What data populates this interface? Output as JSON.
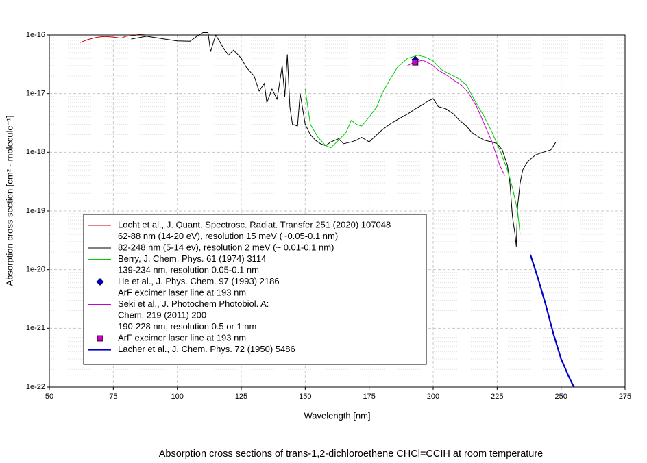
{
  "chart_data": {
    "type": "line",
    "title": "Absorption cross sections of trans-1,2-dichloroethene CHCl=CCIH at room temperature",
    "x_label": "Wavelength [nm]",
    "y_label": "Absorption cross section [cm² · molecule⁻¹]",
    "xlim": [
      50,
      275
    ],
    "xticks": [
      50,
      75,
      100,
      125,
      150,
      175,
      200,
      225,
      250,
      275
    ],
    "ylim": [
      1e-22,
      1e-16
    ],
    "yticks": [
      1e-22,
      1e-21,
      1e-20,
      1e-19,
      1e-18,
      1e-17,
      1e-16
    ],
    "log_y": true,
    "grid": true,
    "legend": "lower left",
    "series": [
      {
        "name": [
          "Locht et al., J. Quant. Spectrosc. Radiat. Transfer 251 (2020) 107048",
          "62-88 nm (14-20 eV), resolution 15 meV (~0.05-0.1 nm)"
        ],
        "color": "#cc0000",
        "style": "line",
        "x": [
          62,
          65,
          68,
          70,
          72,
          75,
          78,
          80,
          83,
          85,
          88
        ],
        "values": [
          7.4e-17,
          8.3e-17,
          9e-17,
          9.3e-17,
          9.4e-17,
          9.2e-17,
          8.8e-17,
          9.5e-17,
          9.8e-17,
          1.02e-16,
          1e-16
        ]
      },
      {
        "name": [
          "82-248 nm (5-14 ev),  resolution  2 meV (~ 0.01-0.1 nm)"
        ],
        "color": "#000000",
        "style": "line",
        "x": [
          82,
          88,
          95,
          100,
          105,
          108,
          110,
          112,
          113,
          115,
          118,
          120,
          122,
          125,
          127,
          130,
          132,
          134,
          135,
          137,
          139,
          141,
          142,
          143,
          144,
          145,
          147,
          148,
          150,
          152,
          154,
          156,
          158,
          160,
          163,
          165,
          168,
          170,
          172,
          175,
          178,
          180,
          183,
          186,
          190,
          193,
          196,
          198,
          200,
          202,
          205,
          208,
          210,
          213,
          215,
          218,
          220,
          223,
          225,
          227,
          229,
          230,
          231,
          232,
          232.5,
          233,
          234,
          235,
          237,
          240,
          243,
          246,
          248
        ],
        "values": [
          8.5e-17,
          9.5e-17,
          8.5e-17,
          7.9e-17,
          7.8e-17,
          9.7e-17,
          1.1e-16,
          1.1e-16,
          5.2e-17,
          1e-16,
          6e-17,
          4.5e-17,
          5.5e-17,
          4e-17,
          2.8e-17,
          2e-17,
          1.1e-17,
          1.5e-17,
          7e-18,
          1.2e-17,
          8e-18,
          3e-17,
          9e-18,
          4.6e-17,
          6e-18,
          3e-18,
          2.8e-18,
          1e-17,
          3e-18,
          2e-18,
          1.6e-18,
          1.4e-18,
          1.3e-18,
          1.5e-18,
          1.7e-18,
          1.4e-18,
          1.5e-18,
          1.6e-18,
          1.8e-18,
          1.5e-18,
          2e-18,
          2.4e-18,
          3e-18,
          3.6e-18,
          4.5e-18,
          5.5e-18,
          6.5e-18,
          7.5e-18,
          8.2e-18,
          6e-18,
          5.5e-18,
          4.5e-18,
          3.6e-18,
          2.8e-18,
          2.2e-18,
          1.8e-18,
          1.6e-18,
          1.5e-18,
          1.4e-18,
          1.1e-18,
          6e-19,
          3e-19,
          8e-20,
          4e-20,
          2.5e-20,
          1.2e-19,
          3e-19,
          5e-19,
          7e-19,
          9e-19,
          1e-18,
          1.1e-18,
          1.5e-18
        ]
      },
      {
        "name": [
          "Berry, J. Chem. Phys. 61 (1974) 3114",
          "139-234 nm, resolution 0.05-0.1 nm"
        ],
        "color": "#00cc00",
        "style": "line",
        "x": [
          150,
          152,
          155,
          158,
          160,
          163,
          166,
          168,
          170,
          172,
          175,
          178,
          180,
          183,
          186,
          190,
          194,
          197,
          200,
          203,
          206,
          210,
          213,
          216,
          220,
          223,
          226,
          229,
          231,
          233,
          234
        ],
        "values": [
          1.2e-17,
          3e-18,
          1.8e-18,
          1.3e-18,
          1.2e-18,
          1.6e-18,
          2.2e-18,
          3.5e-18,
          3e-18,
          2.8e-18,
          4e-18,
          6e-18,
          1e-17,
          1.7e-17,
          2.8e-17,
          4e-17,
          4.5e-17,
          4.2e-17,
          3.6e-17,
          2.6e-17,
          2.2e-17,
          1.8e-17,
          1.4e-17,
          8e-18,
          4e-18,
          2.2e-18,
          1.1e-18,
          5e-19,
          2.5e-19,
          1e-19,
          4e-20
        ]
      },
      {
        "name": [
          "He et al., J. Phys. Chem. 97 (1993) 2186",
          "ArF excimer laser line at 193 nm"
        ],
        "color": "#0000cc",
        "style": "diamond",
        "x": [
          193
        ],
        "values": [
          3.8e-17
        ]
      },
      {
        "name": [
          "Seki et al., J. Photochem Photobiol. A:",
          "Chem. 219 (2011) 200",
          "190-228 nm, resolution 0.5 or 1 nm"
        ],
        "color": "#cc00cc",
        "style": "line",
        "x": [
          190,
          193,
          196,
          199,
          202,
          205,
          208,
          211,
          214,
          217,
          220,
          223,
          226,
          228
        ],
        "values": [
          3e-17,
          3.5e-17,
          3.7e-17,
          3.2e-17,
          2.5e-17,
          2.1e-17,
          1.7e-17,
          1.4e-17,
          1e-17,
          6e-18,
          3e-18,
          1.5e-18,
          6e-19,
          4e-19
        ]
      },
      {
        "name": [
          "ArF excimer laser line at 193 nm"
        ],
        "color": "#cc00cc",
        "style": "square",
        "x": [
          193
        ],
        "values": [
          3.4e-17
        ]
      },
      {
        "name": [
          "Lacher et al., J. Chem. Phys. 72 (1950) 5486"
        ],
        "color": "#0000cc",
        "style": "thick",
        "x": [
          238,
          241,
          244,
          247,
          250,
          253,
          255
        ],
        "values": [
          1.8e-20,
          7e-21,
          2.5e-21,
          8e-22,
          3e-22,
          1.5e-22,
          1e-22
        ]
      }
    ]
  }
}
